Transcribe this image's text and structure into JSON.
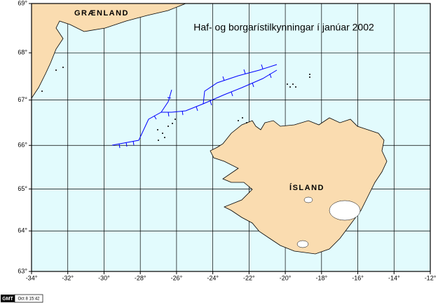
{
  "map": {
    "title": "Haf- og borgarístilkynningar í janúar 2002",
    "labels": [
      "GRÆNLAND",
      "ÍSLAND"
    ],
    "xlim": [
      -34,
      -12
    ],
    "ylim": [
      63,
      69
    ],
    "xticks": [
      {
        "value": -34,
        "label": "-34°"
      },
      {
        "value": -32,
        "label": "-32°"
      },
      {
        "value": -30,
        "label": "-30°"
      },
      {
        "value": -28,
        "label": "-28°"
      },
      {
        "value": -26,
        "label": "-26°"
      },
      {
        "value": -24,
        "label": "-24°"
      },
      {
        "value": -22,
        "label": "-22°"
      },
      {
        "value": -20,
        "label": "-20°"
      },
      {
        "value": -18,
        "label": "-18°"
      },
      {
        "value": -16,
        "label": "-16°"
      },
      {
        "value": -14,
        "label": "-14°"
      },
      {
        "value": -12,
        "label": "-12°"
      }
    ],
    "yticks": [
      {
        "value": 63,
        "label": "63°"
      },
      {
        "value": 64,
        "label": "64°"
      },
      {
        "value": 65,
        "label": "65°"
      },
      {
        "value": 66,
        "label": "66°"
      },
      {
        "value": 67,
        "label": "67°"
      },
      {
        "value": 68,
        "label": "68°"
      },
      {
        "value": 69,
        "label": "69°"
      }
    ]
  },
  "stamp": {
    "logo": "GMT",
    "time": "Oct 8 15:42"
  }
}
